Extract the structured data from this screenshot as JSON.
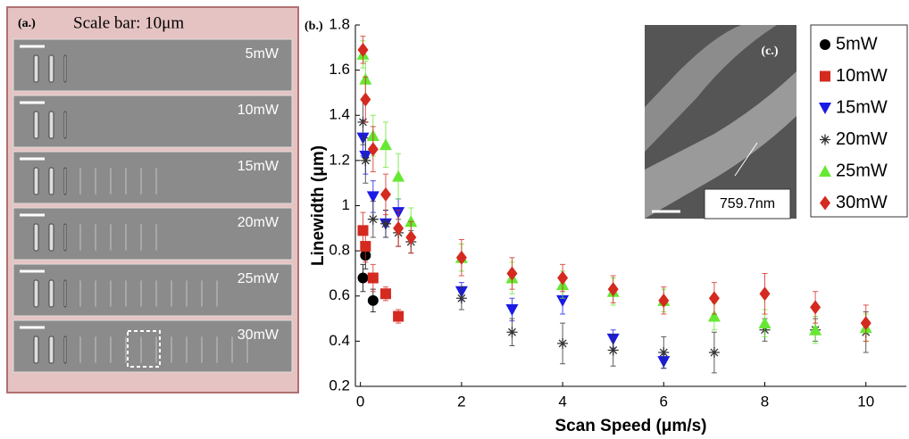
{
  "panel_a": {
    "label": "(a.)",
    "title": "Scale bar: 10μm",
    "rows": [
      "5mW",
      "10mW",
      "15mW",
      "20mW",
      "25mW",
      "30mW"
    ]
  },
  "panel_b_label": "(b.)",
  "inset": {
    "label": "(c.)",
    "measurement": "759.7nm"
  },
  "chart_data": {
    "type": "scatter",
    "x_label": "Scan Speed (μm/s)",
    "y_label": "Linewidth (μm)",
    "xlim": [
      -0.1,
      10.8
    ],
    "ylim": [
      0.2,
      1.8
    ],
    "xticks": [
      0,
      2,
      4,
      6,
      8,
      10
    ],
    "yticks": [
      0.2,
      0.4,
      0.6,
      0.8,
      1,
      1.2,
      1.4,
      1.6,
      1.8
    ],
    "series": [
      {
        "name": "5mW",
        "color": "#000000",
        "marker": "circle",
        "x": [
          0.05,
          0.1,
          0.25
        ],
        "values": [
          0.68,
          0.78,
          0.58
        ],
        "errors": [
          0.06,
          0.06,
          0.05
        ]
      },
      {
        "name": "10mW",
        "color": "#d42a20",
        "marker": "square",
        "x": [
          0.05,
          0.1,
          0.25,
          0.5,
          0.75
        ],
        "values": [
          0.89,
          0.82,
          0.68,
          0.61,
          0.51
        ],
        "errors": [
          0.08,
          0.07,
          0.06,
          0.03,
          0.03
        ]
      },
      {
        "name": "15mW",
        "color": "#1a1ae6",
        "marker": "triangle-down",
        "x": [
          0.05,
          0.1,
          0.25,
          0.5,
          0.75,
          2,
          3,
          4,
          5,
          6
        ],
        "values": [
          1.3,
          1.22,
          1.04,
          0.92,
          0.97,
          0.62,
          0.54,
          0.58,
          0.41,
          0.31
        ],
        "errors": [
          0.08,
          0.08,
          0.07,
          0.06,
          0.06,
          0.04,
          0.05,
          0.06,
          0.04,
          0.03
        ]
      },
      {
        "name": "20mW",
        "color": "#333333",
        "marker": "star",
        "x": [
          0.05,
          0.1,
          0.25,
          0.5,
          0.75,
          1,
          2,
          3,
          4,
          5,
          6,
          7,
          8,
          9,
          10
        ],
        "values": [
          1.37,
          1.2,
          0.94,
          0.92,
          0.88,
          0.84,
          0.59,
          0.44,
          0.39,
          0.36,
          0.35,
          0.35,
          0.45,
          0.45,
          0.44
        ],
        "errors": [
          0.1,
          0.1,
          0.08,
          0.06,
          0.06,
          0.05,
          0.05,
          0.06,
          0.09,
          0.07,
          0.07,
          0.09,
          0.05,
          0.05,
          0.09
        ]
      },
      {
        "name": "25mW",
        "color": "#66e833",
        "marker": "triangle-up",
        "x": [
          0.05,
          0.1,
          0.25,
          0.5,
          0.75,
          1,
          2,
          3,
          4,
          5,
          6,
          7,
          8,
          9,
          10
        ],
        "values": [
          1.67,
          1.56,
          1.31,
          1.27,
          1.13,
          0.93,
          0.77,
          0.68,
          0.65,
          0.62,
          0.58,
          0.51,
          0.48,
          0.45,
          0.46
        ],
        "errors": [
          0.06,
          0.08,
          0.09,
          0.1,
          0.1,
          0.06,
          0.06,
          0.07,
          0.06,
          0.06,
          0.05,
          0.06,
          0.06,
          0.06,
          0.06
        ]
      },
      {
        "name": "30mW",
        "color": "#d42a20",
        "marker": "diamond",
        "x": [
          0.05,
          0.1,
          0.25,
          0.5,
          0.75,
          1,
          2,
          3,
          4,
          5,
          6,
          7,
          8,
          9,
          10
        ],
        "values": [
          1.69,
          1.47,
          1.25,
          1.05,
          0.9,
          0.86,
          0.77,
          0.7,
          0.68,
          0.63,
          0.58,
          0.59,
          0.61,
          0.55,
          0.48
        ],
        "errors": [
          0.06,
          0.1,
          0.1,
          0.09,
          0.08,
          0.07,
          0.08,
          0.07,
          0.06,
          0.06,
          0.06,
          0.07,
          0.09,
          0.07,
          0.08
        ]
      }
    ]
  }
}
